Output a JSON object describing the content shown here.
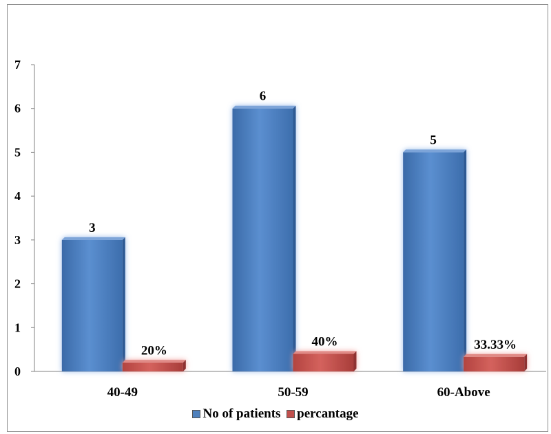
{
  "chart_data": {
    "type": "bar",
    "categories": [
      "40-49",
      "50-59",
      "60-Above"
    ],
    "series": [
      {
        "name": "No of patients",
        "values": [
          3,
          6,
          5
        ],
        "labels": [
          "3",
          "6",
          "5"
        ],
        "color": "#4f81bd"
      },
      {
        "name": "percantage",
        "values": [
          0.2,
          0.4,
          0.3333
        ],
        "labels": [
          "20%",
          "40%",
          "33.33%"
        ],
        "color": "#c0504d"
      }
    ],
    "yticks": [
      "0",
      "1",
      "2",
      "3",
      "4",
      "5",
      "6",
      "7"
    ],
    "ylim": [
      0,
      7
    ],
    "grid": false,
    "legend_position": "bottom"
  }
}
